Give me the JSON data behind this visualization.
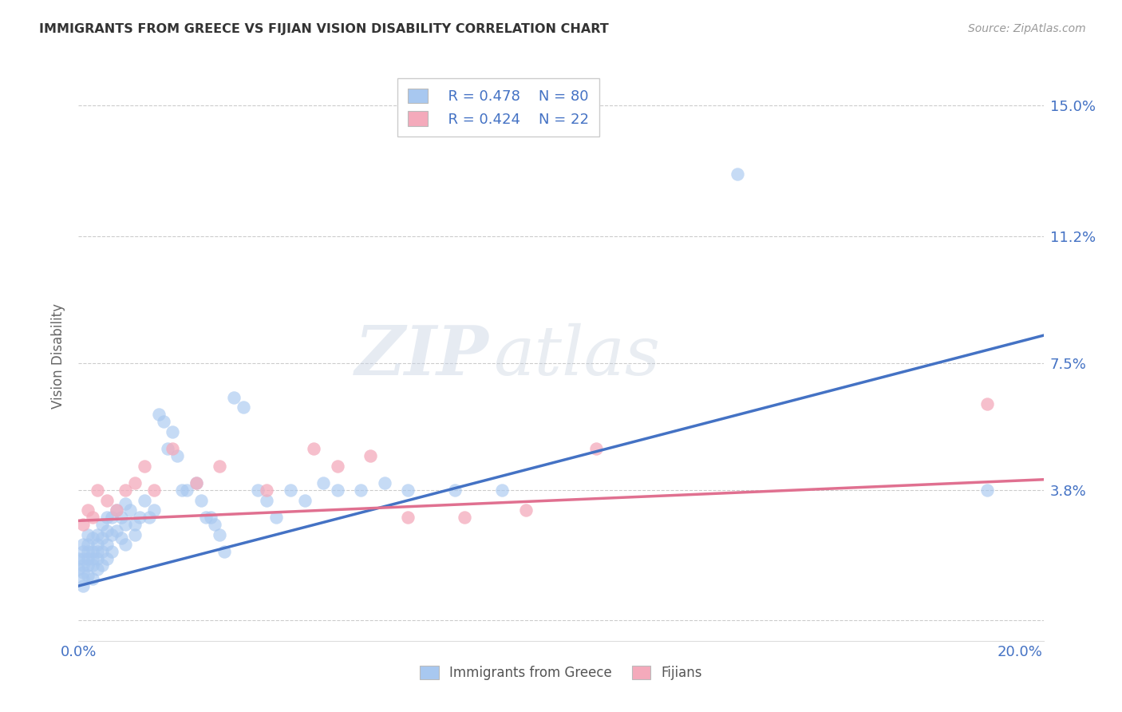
{
  "title": "IMMIGRANTS FROM GREECE VS FIJIAN VISION DISABILITY CORRELATION CHART",
  "source": "Source: ZipAtlas.com",
  "ylabel": "Vision Disability",
  "xlim": [
    0.0,
    0.205
  ],
  "ylim": [
    -0.006,
    0.16
  ],
  "ytick_positions": [
    0.0,
    0.038,
    0.075,
    0.112,
    0.15
  ],
  "ytick_labels_right": [
    "",
    "3.8%",
    "7.5%",
    "11.2%",
    "15.0%"
  ],
  "xtick_positions": [
    0.0,
    0.05,
    0.1,
    0.15,
    0.2
  ],
  "xtick_labels": [
    "0.0%",
    "",
    "",
    "",
    "20.0%"
  ],
  "legend_r_blue": "R = 0.478",
  "legend_n_blue": "N = 80",
  "legend_r_pink": "R = 0.424",
  "legend_n_pink": "N = 22",
  "label_blue": "Immigrants from Greece",
  "label_pink": "Fijians",
  "blue_dot_color": "#A8C8F0",
  "blue_line_color": "#4472C4",
  "pink_dot_color": "#F4AABB",
  "pink_line_color": "#E07090",
  "blue_trendline_x": [
    0.0,
    0.205
  ],
  "blue_trendline_y": [
    0.01,
    0.083
  ],
  "pink_trendline_x": [
    0.0,
    0.205
  ],
  "pink_trendline_y": [
    0.029,
    0.041
  ],
  "blue_scatter_x": [
    0.0,
    0.0,
    0.001,
    0.001,
    0.001,
    0.001,
    0.001,
    0.001,
    0.001,
    0.002,
    0.002,
    0.002,
    0.002,
    0.002,
    0.002,
    0.003,
    0.003,
    0.003,
    0.003,
    0.003,
    0.004,
    0.004,
    0.004,
    0.004,
    0.004,
    0.005,
    0.005,
    0.005,
    0.005,
    0.006,
    0.006,
    0.006,
    0.006,
    0.007,
    0.007,
    0.007,
    0.008,
    0.008,
    0.009,
    0.009,
    0.01,
    0.01,
    0.01,
    0.011,
    0.012,
    0.012,
    0.013,
    0.014,
    0.015,
    0.016,
    0.017,
    0.018,
    0.019,
    0.02,
    0.021,
    0.022,
    0.023,
    0.025,
    0.026,
    0.027,
    0.028,
    0.029,
    0.03,
    0.031,
    0.033,
    0.035,
    0.038,
    0.04,
    0.042,
    0.045,
    0.048,
    0.052,
    0.055,
    0.06,
    0.065,
    0.07,
    0.08,
    0.09,
    0.14,
    0.193
  ],
  "blue_scatter_y": [
    0.015,
    0.018,
    0.012,
    0.016,
    0.02,
    0.022,
    0.018,
    0.01,
    0.014,
    0.02,
    0.016,
    0.022,
    0.018,
    0.025,
    0.013,
    0.02,
    0.016,
    0.024,
    0.018,
    0.012,
    0.022,
    0.018,
    0.025,
    0.02,
    0.015,
    0.024,
    0.02,
    0.028,
    0.016,
    0.026,
    0.022,
    0.03,
    0.018,
    0.03,
    0.025,
    0.02,
    0.032,
    0.026,
    0.03,
    0.024,
    0.034,
    0.028,
    0.022,
    0.032,
    0.028,
    0.025,
    0.03,
    0.035,
    0.03,
    0.032,
    0.06,
    0.058,
    0.05,
    0.055,
    0.048,
    0.038,
    0.038,
    0.04,
    0.035,
    0.03,
    0.03,
    0.028,
    0.025,
    0.02,
    0.065,
    0.062,
    0.038,
    0.035,
    0.03,
    0.038,
    0.035,
    0.04,
    0.038,
    0.038,
    0.04,
    0.038,
    0.038,
    0.038,
    0.13,
    0.038
  ],
  "pink_scatter_x": [
    0.001,
    0.002,
    0.003,
    0.004,
    0.006,
    0.008,
    0.01,
    0.012,
    0.014,
    0.016,
    0.02,
    0.025,
    0.03,
    0.04,
    0.05,
    0.055,
    0.062,
    0.07,
    0.082,
    0.095,
    0.11,
    0.193
  ],
  "pink_scatter_y": [
    0.028,
    0.032,
    0.03,
    0.038,
    0.035,
    0.032,
    0.038,
    0.04,
    0.045,
    0.038,
    0.05,
    0.04,
    0.045,
    0.038,
    0.05,
    0.045,
    0.048,
    0.03,
    0.03,
    0.032,
    0.05,
    0.063
  ]
}
